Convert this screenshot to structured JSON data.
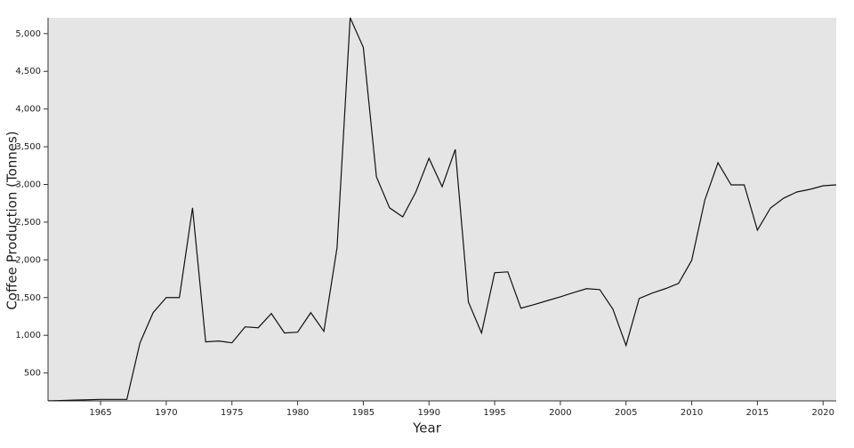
{
  "chart_data": {
    "type": "line",
    "x_label": "Year",
    "y_label": "Coffee Production (Tonnes)",
    "x": [
      1961,
      1962,
      1963,
      1964,
      1965,
      1966,
      1967,
      1968,
      1969,
      1970,
      1971,
      1972,
      1973,
      1974,
      1975,
      1976,
      1977,
      1978,
      1979,
      1980,
      1981,
      1982,
      1983,
      1984,
      1985,
      1986,
      1987,
      1988,
      1989,
      1990,
      1991,
      1992,
      1993,
      1994,
      1995,
      1996,
      1997,
      1998,
      1999,
      2000,
      2001,
      2002,
      2003,
      2004,
      2005,
      2006,
      2007,
      2008,
      2009,
      2010,
      2011,
      2012,
      2013,
      2014,
      2015,
      2016,
      2017,
      2018,
      2019,
      2020,
      2021
    ],
    "series": [
      {
        "color": "#111111",
        "values": [
          130,
          135,
          140,
          145,
          150,
          150,
          150,
          900,
          1300,
          1500,
          1500,
          2690,
          912,
          924,
          900,
          1112,
          1100,
          1288,
          1030,
          1041,
          1300,
          1053,
          2160,
          5210,
          4818,
          3100,
          2690,
          2570,
          2900,
          3347,
          2970,
          3465,
          1441,
          1030,
          1830,
          1841,
          1359,
          1407,
          1459,
          1510,
          1566,
          1618,
          1606,
          1347,
          865,
          1488,
          1560,
          1618,
          1688,
          1994,
          2794,
          3288,
          2994,
          2994,
          2394,
          2688,
          2818,
          2900,
          2935,
          2982,
          2994
        ]
      }
    ],
    "xlim": [
      1961,
      2021
    ],
    "ylim": [
      130,
      5210
    ],
    "xticks": [
      1965,
      1970,
      1975,
      1980,
      1985,
      1990,
      1995,
      2000,
      2005,
      2010,
      2015,
      2020
    ],
    "yticks": [
      500,
      {
        "value": 1000,
        "label": "1,000"
      },
      {
        "value": 1500,
        "label": "1,500"
      },
      {
        "value": 2000,
        "label": "2,000"
      },
      {
        "value": 2500,
        "label": "2,500"
      },
      {
        "value": 3000,
        "label": "3,000"
      },
      {
        "value": 3500,
        "label": "3,500"
      },
      {
        "value": 4000,
        "label": "4,000"
      },
      {
        "value": 4500,
        "label": "4,500"
      },
      {
        "value": 5000,
        "label": "5,000"
      }
    ],
    "plot_background": "#e5e5e5"
  }
}
